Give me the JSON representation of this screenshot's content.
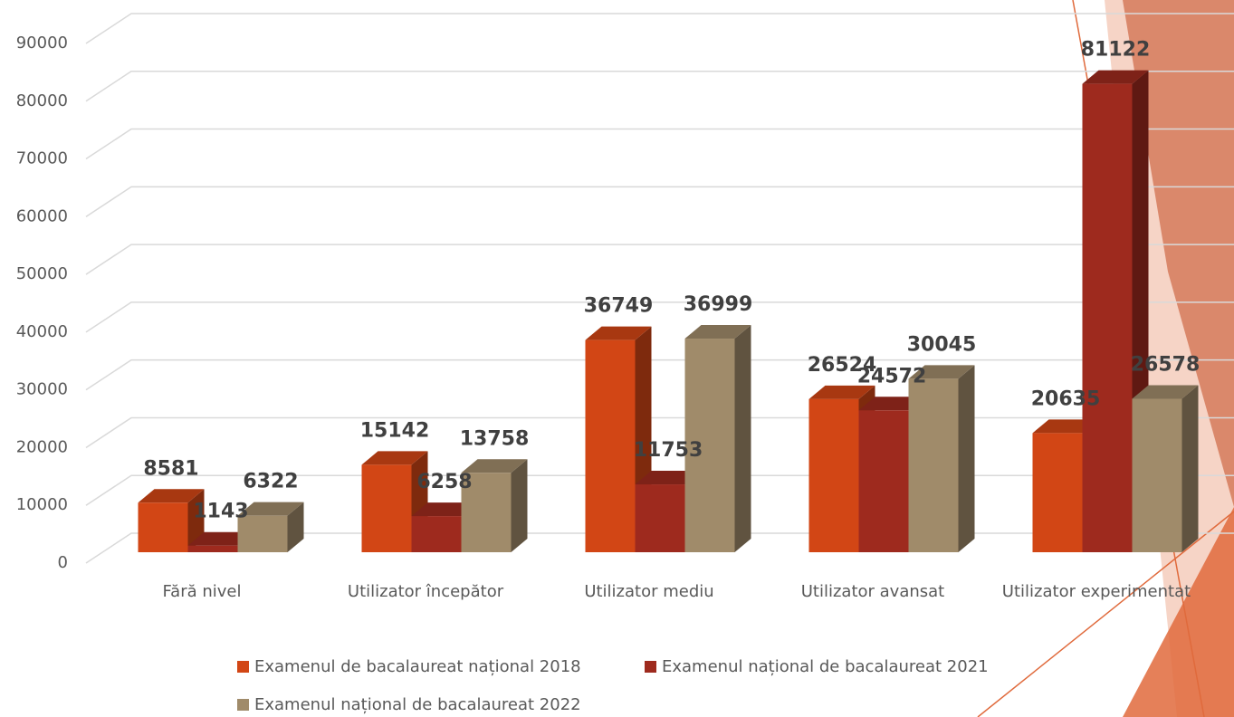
{
  "chart_data": {
    "type": "bar3d",
    "categories": [
      "Fără nivel",
      "Utilizator începător",
      "Utilizator mediu",
      "Utilizator avansat",
      "Utilizator experimentat"
    ],
    "series": [
      {
        "name": "Examenul de bacalaureat național 2018",
        "color": "#d24615",
        "values": [
          8581,
          15142,
          36749,
          26524,
          20635
        ]
      },
      {
        "name": "Examenul național de bacalaureat 2021",
        "color": "#9e2a1e",
        "values": [
          1143,
          6258,
          11753,
          24572,
          81122
        ]
      },
      {
        "name": "Examenul național de bacalaureat 2022",
        "color": "#a08b6a",
        "values": [
          6322,
          13758,
          36999,
          30045,
          26578
        ]
      }
    ],
    "ylim": [
      0,
      90000
    ],
    "yticks": [
      0,
      10000,
      20000,
      30000,
      40000,
      50000,
      60000,
      70000,
      80000,
      90000
    ],
    "grid": true
  }
}
